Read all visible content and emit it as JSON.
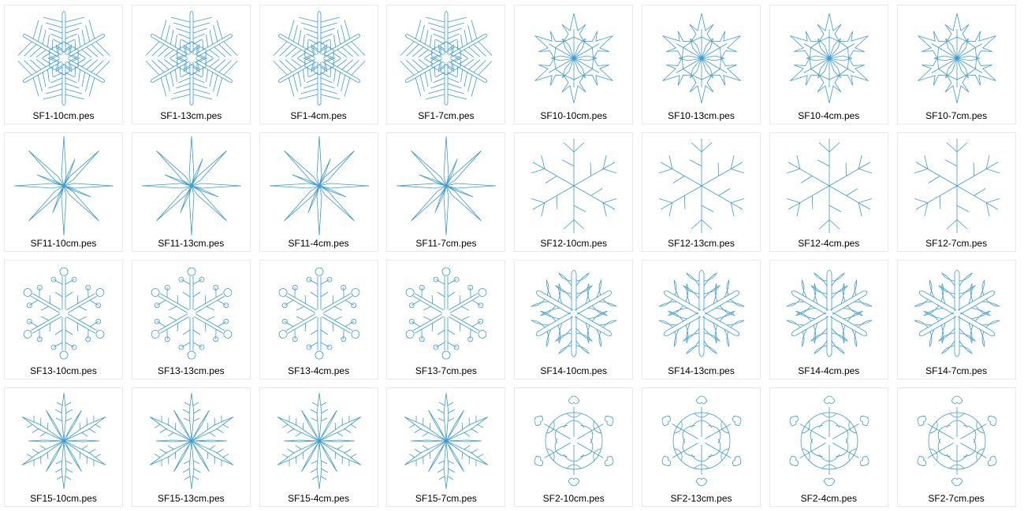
{
  "accent_color": "#3d9bd1",
  "files": [
    {
      "name": "SF1-10cm.pes",
      "icon": "snowflake-fern-icon",
      "design": "SF1"
    },
    {
      "name": "SF1-13cm.pes",
      "icon": "snowflake-fern-icon",
      "design": "SF1"
    },
    {
      "name": "SF1-4cm.pes",
      "icon": "snowflake-fern-icon",
      "design": "SF1"
    },
    {
      "name": "SF1-7cm.pes",
      "icon": "snowflake-fern-icon",
      "design": "SF1"
    },
    {
      "name": "SF10-10cm.pes",
      "icon": "snowflake-stars-icon",
      "design": "SF10"
    },
    {
      "name": "SF10-13cm.pes",
      "icon": "snowflake-stars-icon",
      "design": "SF10"
    },
    {
      "name": "SF10-4cm.pes",
      "icon": "snowflake-stars-icon",
      "design": "SF10"
    },
    {
      "name": "SF10-7cm.pes",
      "icon": "snowflake-stars-icon",
      "design": "SF10"
    },
    {
      "name": "SF11-10cm.pes",
      "icon": "eight-point-star-icon",
      "design": "SF11"
    },
    {
      "name": "SF11-13cm.pes",
      "icon": "eight-point-star-icon",
      "design": "SF11"
    },
    {
      "name": "SF11-4cm.pes",
      "icon": "eight-point-star-icon",
      "design": "SF11"
    },
    {
      "name": "SF11-7cm.pes",
      "icon": "eight-point-star-icon",
      "design": "SF11"
    },
    {
      "name": "SF12-10cm.pes",
      "icon": "snowflake-branch-icon",
      "design": "SF12"
    },
    {
      "name": "SF12-13cm.pes",
      "icon": "snowflake-branch-icon",
      "design": "SF12"
    },
    {
      "name": "SF12-4cm.pes",
      "icon": "snowflake-branch-icon",
      "design": "SF12"
    },
    {
      "name": "SF12-7cm.pes",
      "icon": "snowflake-branch-icon",
      "design": "SF12"
    },
    {
      "name": "SF13-10cm.pes",
      "icon": "snowflake-round-tips-icon",
      "design": "SF13"
    },
    {
      "name": "SF13-13cm.pes",
      "icon": "snowflake-round-tips-icon",
      "design": "SF13"
    },
    {
      "name": "SF13-4cm.pes",
      "icon": "snowflake-round-tips-icon",
      "design": "SF13"
    },
    {
      "name": "SF13-7cm.pes",
      "icon": "snowflake-round-tips-icon",
      "design": "SF13"
    },
    {
      "name": "SF14-10cm.pes",
      "icon": "snowflake-leaf-icon",
      "design": "SF14"
    },
    {
      "name": "SF14-13cm.pes",
      "icon": "snowflake-leaf-icon",
      "design": "SF14"
    },
    {
      "name": "SF14-4cm.pes",
      "icon": "snowflake-leaf-icon",
      "design": "SF14"
    },
    {
      "name": "SF14-7cm.pes",
      "icon": "snowflake-leaf-icon",
      "design": "SF14"
    },
    {
      "name": "SF15-10cm.pes",
      "icon": "snowflake-spike-icon",
      "design": "SF15"
    },
    {
      "name": "SF15-13cm.pes",
      "icon": "snowflake-spike-icon",
      "design": "SF15"
    },
    {
      "name": "SF15-4cm.pes",
      "icon": "snowflake-spike-icon",
      "design": "SF15"
    },
    {
      "name": "SF15-7cm.pes",
      "icon": "snowflake-spike-icon",
      "design": "SF15"
    },
    {
      "name": "SF2-10cm.pes",
      "icon": "snowflake-ornate-icon",
      "design": "SF2"
    },
    {
      "name": "SF2-13cm.pes",
      "icon": "snowflake-ornate-icon",
      "design": "SF2"
    },
    {
      "name": "SF2-4cm.pes",
      "icon": "snowflake-ornate-icon",
      "design": "SF2"
    },
    {
      "name": "SF2-7cm.pes",
      "icon": "snowflake-ornate-icon",
      "design": "SF2"
    }
  ]
}
